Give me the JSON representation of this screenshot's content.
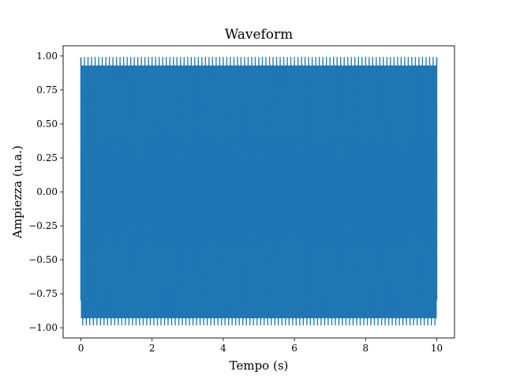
{
  "chart_data": {
    "type": "line",
    "title": "Waveform",
    "xlabel": "Tempo (s)",
    "ylabel": "Ampiezza (u.a.)",
    "xlim": [
      -0.5,
      10.5
    ],
    "ylim": [
      -1.075,
      1.075
    ],
    "xticks": [
      0,
      2,
      4,
      6,
      8,
      10
    ],
    "xtick_labels": [
      "0",
      "2",
      "4",
      "6",
      "8",
      "10"
    ],
    "yticks": [
      -1.0,
      -0.75,
      -0.5,
      -0.25,
      0.0,
      0.25,
      0.5,
      0.75,
      1.0
    ],
    "ytick_labels": [
      "−1.00",
      "−0.75",
      "−0.50",
      "−0.25",
      "0.00",
      "0.25",
      "0.50",
      "0.75",
      "1.00"
    ],
    "grid": false,
    "legend": "none",
    "series": [
      {
        "color": "#1f77b4",
        "x_start": 0,
        "x_end": 10,
        "amplitude": 1.0,
        "envelope_min": -0.98,
        "envelope_max": 0.99,
        "cycles_visible": 100
      }
    ]
  }
}
